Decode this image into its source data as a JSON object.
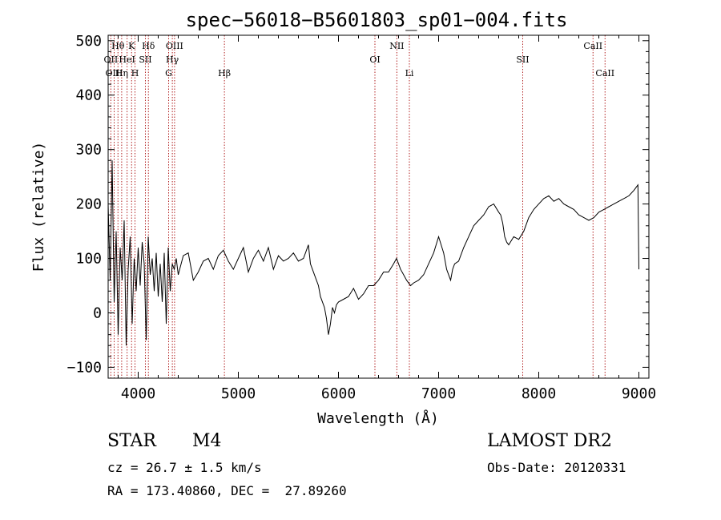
{
  "chart_data": {
    "type": "line",
    "title": "spec−56018−B5601803_sp01−004.fits",
    "xlabel": "Wavelength (Å)",
    "ylabel": "Flux (relative)",
    "xlim": [
      3700,
      9100
    ],
    "ylim": [
      -120,
      510
    ],
    "xticks": [
      4000,
      5000,
      6000,
      7000,
      8000,
      9000
    ],
    "yticks": [
      -100,
      0,
      100,
      200,
      300,
      400,
      500
    ],
    "grid": false,
    "series": [
      {
        "x": [
          3700,
          3720,
          3740,
          3760,
          3780,
          3800,
          3820,
          3840,
          3860,
          3880,
          3900,
          3920,
          3940,
          3960,
          3980,
          4000,
          4020,
          4040,
          4060,
          4080,
          4100,
          4120,
          4140,
          4160,
          4180,
          4200,
          4220,
          4240,
          4260,
          4280,
          4300,
          4320,
          4340,
          4360,
          4380,
          4400,
          4450,
          4500,
          4550,
          4600,
          4650,
          4700,
          4750,
          4800,
          4850,
          4900,
          4950,
          5000,
          5050,
          5100,
          5150,
          5200,
          5250,
          5300,
          5350,
          5400,
          5450,
          5500,
          5550,
          5600,
          5650,
          5700,
          5720,
          5740,
          5760,
          5780,
          5800,
          5820,
          5840,
          5860,
          5880,
          5900,
          5920,
          5940,
          5960,
          5980,
          6000,
          6050,
          6100,
          6150,
          6200,
          6250,
          6300,
          6350,
          6400,
          6450,
          6500,
          6550,
          6580,
          6600,
          6620,
          6650,
          6680,
          6700,
          6720,
          6750,
          6800,
          6850,
          6900,
          6950,
          7000,
          7050,
          7080,
          7100,
          7120,
          7140,
          7160,
          7200,
          7250,
          7300,
          7350,
          7400,
          7450,
          7500,
          7550,
          7600,
          7620,
          7640,
          7660,
          7680,
          7700,
          7750,
          7800,
          7850,
          7900,
          7950,
          8000,
          8050,
          8100,
          8150,
          8200,
          8250,
          8300,
          8350,
          8400,
          8450,
          8500,
          8550,
          8600,
          8650,
          8700,
          8750,
          8800,
          8850,
          8900,
          8950,
          8990,
          9000
        ],
        "y": [
          200,
          60,
          280,
          20,
          150,
          -40,
          120,
          60,
          170,
          -60,
          80,
          140,
          -20,
          100,
          40,
          120,
          50,
          130,
          90,
          -50,
          140,
          70,
          100,
          40,
          110,
          30,
          90,
          20,
          110,
          -20,
          120,
          40,
          90,
          80,
          100,
          70,
          105,
          110,
          60,
          75,
          95,
          100,
          80,
          105,
          115,
          95,
          80,
          100,
          120,
          75,
          100,
          115,
          95,
          120,
          80,
          105,
          95,
          100,
          110,
          95,
          100,
          125,
          90,
          80,
          70,
          60,
          50,
          30,
          20,
          10,
          -10,
          -40,
          -20,
          10,
          0,
          15,
          20,
          25,
          30,
          45,
          25,
          35,
          50,
          50,
          60,
          75,
          75,
          90,
          100,
          90,
          80,
          70,
          60,
          55,
          50,
          55,
          60,
          70,
          90,
          110,
          140,
          110,
          80,
          70,
          60,
          80,
          90,
          95,
          120,
          140,
          160,
          170,
          180,
          195,
          200,
          185,
          180,
          165,
          140,
          130,
          125,
          140,
          135,
          150,
          175,
          190,
          200,
          210,
          215,
          205,
          210,
          200,
          195,
          190,
          180,
          175,
          170,
          175,
          185,
          190,
          195,
          200,
          205,
          210,
          215,
          225,
          235,
          80
        ]
      }
    ],
    "lines": [
      {
        "x": 3727,
        "label": "OII"
      },
      {
        "x": 3760,
        "label": "OIII"
      },
      {
        "x": 3798,
        "label": "Hθ"
      },
      {
        "x": 3835,
        "label": "Hη"
      },
      {
        "x": 3889,
        "label": "HeI"
      },
      {
        "x": 3934,
        "label": "K"
      },
      {
        "x": 3968,
        "label": "H"
      },
      {
        "x": 4072,
        "label": "SII"
      },
      {
        "x": 4102,
        "label": "Hδ"
      },
      {
        "x": 4304,
        "label": "G"
      },
      {
        "x": 4341,
        "label": "Hγ"
      },
      {
        "x": 4363,
        "label": "OIII"
      },
      {
        "x": 4861,
        "label": "Hβ"
      },
      {
        "x": 6364,
        "label": "OI"
      },
      {
        "x": 6583,
        "label": "NII"
      },
      {
        "x": 6708,
        "label": "Li"
      },
      {
        "x": 7840,
        "label": "SII"
      },
      {
        "x": 8542,
        "label": "CaII"
      },
      {
        "x": 8662,
        "label": "CaII"
      }
    ]
  },
  "info": {
    "class": "STAR",
    "subclass": "M4",
    "survey": "LAMOST DR2",
    "cz": "cz = 26.7 ± 1.5 km/s",
    "obsdate": "Obs-Date: 20120331",
    "coords": "RA = 173.40860, DEC =  27.89260"
  }
}
